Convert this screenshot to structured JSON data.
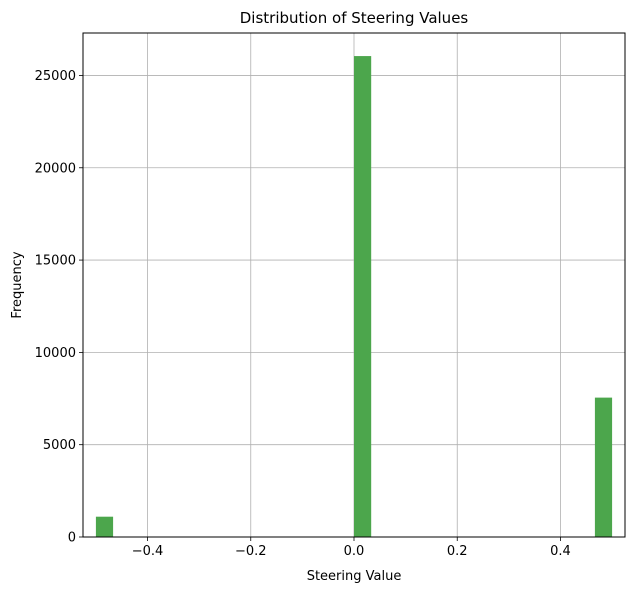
{
  "chart_data": {
    "type": "bar",
    "title": "Distribution of Steering Values",
    "xlabel": "Steering Value",
    "ylabel": "Frequency",
    "xlim": [
      -0.525,
      0.525
    ],
    "ylim": [
      0,
      27300
    ],
    "xticks": [
      -0.4,
      -0.2,
      0.0,
      0.2,
      0.4
    ],
    "xtick_labels": [
      "−0.4",
      "−0.2",
      "0.0",
      "0.2",
      "0.4"
    ],
    "yticks": [
      0,
      5000,
      10000,
      15000,
      20000,
      25000
    ],
    "ytick_labels": [
      "0",
      "5000",
      "10000",
      "15000",
      "20000",
      "25000"
    ],
    "grid": true,
    "bin_width": 0.0333,
    "bars": [
      {
        "x_start": -0.5,
        "x_end": -0.4667,
        "value": 1100
      },
      {
        "x_start": 0.0,
        "x_end": 0.0333,
        "value": 26050
      },
      {
        "x_start": 0.4667,
        "x_end": 0.5,
        "value": 7550
      }
    ],
    "bar_color": "#4ca64c"
  }
}
